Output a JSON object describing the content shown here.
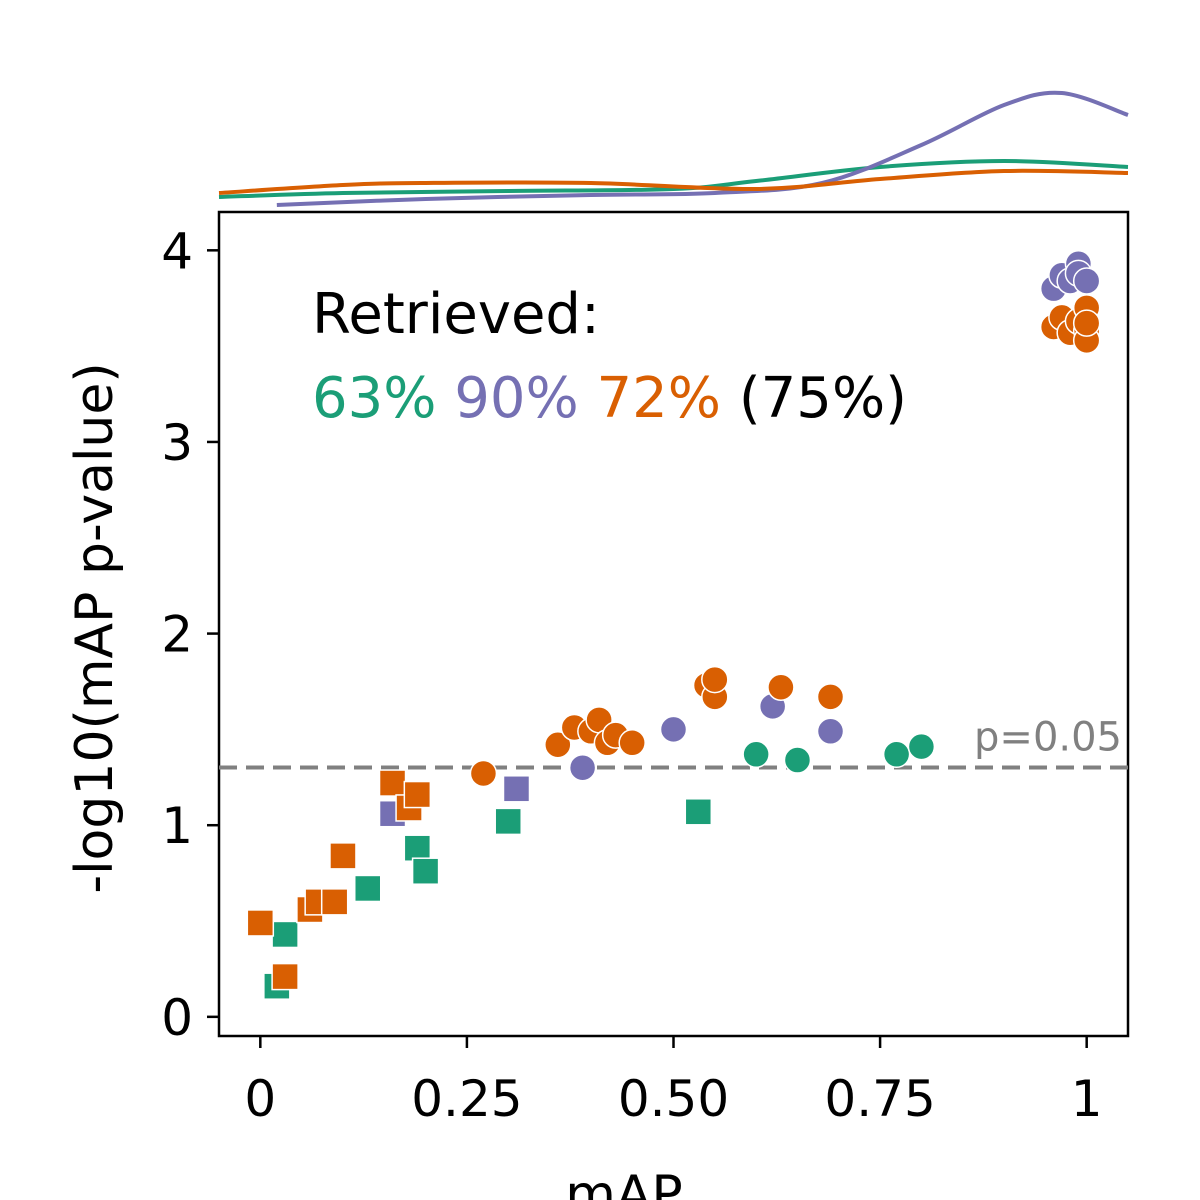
{
  "chart_data": {
    "type": "scatter",
    "title": "",
    "xlabel": "mAP",
    "ylabel": "-log10(mAP p-value)",
    "xlim": [
      -0.05,
      1.05
    ],
    "ylim": [
      -0.1,
      4.2
    ],
    "xticks": [
      0,
      0.25,
      0.5,
      0.75,
      1
    ],
    "xtick_labels": [
      "0",
      "0.25",
      "0.50",
      "0.75",
      "1"
    ],
    "yticks": [
      0,
      1,
      2,
      3,
      4
    ],
    "ytick_labels": [
      "0",
      "1",
      "2",
      "3",
      "4"
    ],
    "grid": false,
    "threshold": {
      "value": 1.301,
      "label": "p=0.05",
      "color": "#808080"
    },
    "annotation": {
      "heading": "Retrieved:",
      "parts": [
        {
          "text": "63%",
          "color": "#1b9e77"
        },
        {
          "text": "90%",
          "color": "#7570b3"
        },
        {
          "text": "72%",
          "color": "#d95f02"
        },
        {
          "text": "(75%)",
          "color": "#000000"
        }
      ]
    },
    "series": [
      {
        "color": "#1b9e77",
        "density": [
          [
            -0.05,
            0.08
          ],
          [
            0.1,
            0.12
          ],
          [
            0.3,
            0.14
          ],
          [
            0.5,
            0.16
          ],
          [
            0.6,
            0.24
          ],
          [
            0.75,
            0.38
          ],
          [
            0.9,
            0.44
          ],
          [
            1.05,
            0.38
          ]
        ],
        "circles": [
          [
            0.6,
            1.37
          ],
          [
            0.65,
            1.34
          ],
          [
            0.77,
            1.37
          ],
          [
            0.8,
            1.41
          ]
        ],
        "squares": [
          [
            0.02,
            0.16
          ],
          [
            0.03,
            0.43
          ],
          [
            0.13,
            0.67
          ],
          [
            0.19,
            0.88
          ],
          [
            0.2,
            0.76
          ],
          [
            0.3,
            1.02
          ],
          [
            0.53,
            1.07
          ]
        ]
      },
      {
        "color": "#7570b3",
        "density": [
          [
            0.02,
            0.0
          ],
          [
            0.2,
            0.06
          ],
          [
            0.4,
            0.1
          ],
          [
            0.55,
            0.12
          ],
          [
            0.68,
            0.22
          ],
          [
            0.8,
            0.6
          ],
          [
            0.9,
            1.0
          ],
          [
            0.97,
            1.12
          ],
          [
            1.05,
            0.9
          ]
        ],
        "circles": [
          [
            0.39,
            1.3
          ],
          [
            0.5,
            1.5
          ],
          [
            0.62,
            1.62
          ],
          [
            0.69,
            1.49
          ],
          [
            0.96,
            3.8
          ],
          [
            0.97,
            3.87
          ],
          [
            0.98,
            3.84
          ],
          [
            0.99,
            3.93
          ],
          [
            0.99,
            3.88
          ],
          [
            1.0,
            3.84
          ]
        ],
        "squares": [
          [
            0.16,
            1.06
          ],
          [
            0.31,
            1.19
          ]
        ]
      },
      {
        "color": "#d95f02",
        "density": [
          [
            -0.05,
            0.12
          ],
          [
            0.1,
            0.2
          ],
          [
            0.2,
            0.22
          ],
          [
            0.4,
            0.22
          ],
          [
            0.6,
            0.16
          ],
          [
            0.75,
            0.26
          ],
          [
            0.9,
            0.34
          ],
          [
            1.05,
            0.32
          ]
        ],
        "circles": [
          [
            0.27,
            1.27
          ],
          [
            0.36,
            1.42
          ],
          [
            0.38,
            1.51
          ],
          [
            0.4,
            1.49
          ],
          [
            0.41,
            1.55
          ],
          [
            0.42,
            1.43
          ],
          [
            0.43,
            1.47
          ],
          [
            0.45,
            1.43
          ],
          [
            0.54,
            1.73
          ],
          [
            0.55,
            1.67
          ],
          [
            0.55,
            1.76
          ],
          [
            0.63,
            1.72
          ],
          [
            0.69,
            1.67
          ],
          [
            0.96,
            3.6
          ],
          [
            0.97,
            3.65
          ],
          [
            0.98,
            3.57
          ],
          [
            0.99,
            3.63
          ],
          [
            1.0,
            3.58
          ],
          [
            1.0,
            3.53
          ],
          [
            1.0,
            3.7
          ],
          [
            1.0,
            3.62
          ]
        ],
        "squares": [
          [
            0.0,
            0.49
          ],
          [
            0.03,
            0.21
          ],
          [
            0.06,
            0.56
          ],
          [
            0.07,
            0.6
          ],
          [
            0.09,
            0.6
          ],
          [
            0.1,
            0.84
          ],
          [
            0.16,
            1.22
          ],
          [
            0.18,
            1.09
          ],
          [
            0.19,
            1.16
          ]
        ]
      }
    ]
  }
}
